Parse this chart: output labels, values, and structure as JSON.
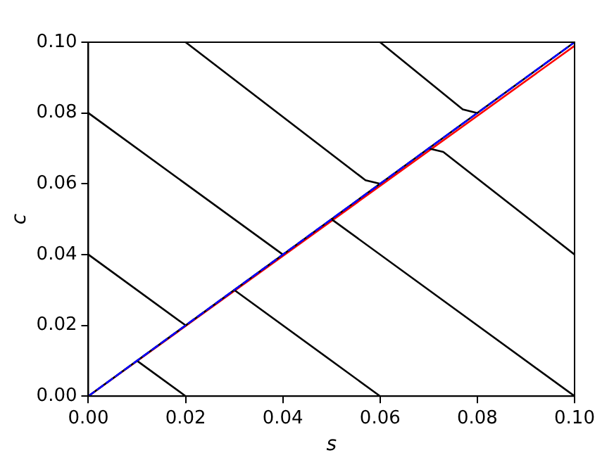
{
  "chart_data": {
    "type": "line",
    "xlabel": "s",
    "ylabel": "c",
    "marker": "none",
    "grid": false,
    "legend": false,
    "xlim": [
      0,
      0.1
    ],
    "ylim": [
      0,
      0.1
    ],
    "xticks": [
      {
        "value": 0,
        "label": "0.00"
      },
      {
        "value": 0.02,
        "label": "0.02"
      },
      {
        "value": 0.04,
        "label": "0.04"
      },
      {
        "value": 0.06,
        "label": "0.06"
      },
      {
        "value": 0.08,
        "label": "0.08"
      },
      {
        "value": 0.1,
        "label": "0.10"
      }
    ],
    "yticks": [
      {
        "value": 0,
        "label": "0.00"
      },
      {
        "value": 0.02,
        "label": "0.02"
      },
      {
        "value": 0.04,
        "label": "0.04"
      },
      {
        "value": 0.06,
        "label": "0.06"
      },
      {
        "value": 0.08,
        "label": "0.08"
      },
      {
        "value": 0.1,
        "label": "0.10"
      }
    ],
    "series": [
      {
        "color": "#0000ff",
        "line_style": "dashed",
        "x": [
          0,
          0.1
        ],
        "values": [
          0,
          0.1
        ]
      },
      {
        "color": "#000000",
        "line_style": "solid",
        "x": [
          0,
          0.02
        ],
        "values": [
          0.04,
          0.02
        ]
      },
      {
        "color": "#000000",
        "line_style": "solid",
        "x": [
          0,
          0.04
        ],
        "values": [
          0.08,
          0.04
        ]
      },
      {
        "color": "#000000",
        "line_style": "solid",
        "x": [
          0.02,
          0.057,
          0.06
        ],
        "values": [
          0.1,
          0.061,
          0.06
        ]
      },
      {
        "color": "#000000",
        "line_style": "solid",
        "x": [
          0.06,
          0.077,
          0.08
        ],
        "values": [
          0.1,
          0.081,
          0.08
        ]
      },
      {
        "color": "#000000",
        "line_style": "solid",
        "x": [
          0.01,
          0.02
        ],
        "values": [
          0.01,
          0
        ]
      },
      {
        "color": "#000000",
        "line_style": "solid",
        "x": [
          0.03,
          0.06
        ],
        "values": [
          0.03,
          0
        ]
      },
      {
        "color": "#000000",
        "line_style": "solid",
        "x": [
          0.05,
          0.1
        ],
        "values": [
          0.05,
          0
        ]
      },
      {
        "color": "#000000",
        "line_style": "solid",
        "x": [
          0.07,
          0.073,
          0.1
        ],
        "values": [
          0.07,
          0.069,
          0.04
        ]
      },
      {
        "color": "#000000",
        "line_style": "solid",
        "x": [
          0,
          0.1
        ],
        "values": [
          0,
          0.1
        ]
      },
      {
        "color": "#ff0000",
        "line_style": "solid",
        "x": [
          0,
          0.1
        ],
        "values": [
          0,
          0.099
        ]
      }
    ]
  }
}
